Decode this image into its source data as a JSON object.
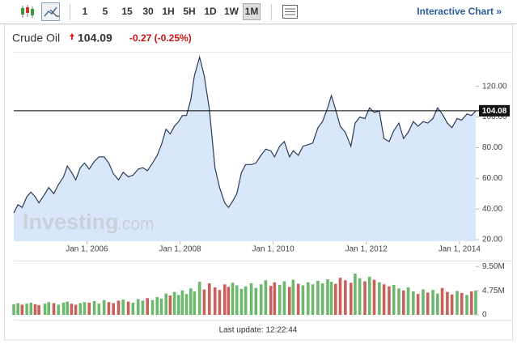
{
  "toolbar": {
    "timeframes": [
      "1",
      "5",
      "15",
      "30",
      "1H",
      "5H",
      "1D",
      "1W",
      "1M"
    ],
    "link": "Interactive Chart »"
  },
  "quote": {
    "name": "Crude Oil",
    "price": 104.09,
    "change": "-0.27 (-0.25%)"
  },
  "watermark": {
    "brand": "Investing",
    "suffix": ".com"
  },
  "footer": "Last update: 12:22:44",
  "chart_data": [
    {
      "type": "area",
      "color": "#2b3a57",
      "fill": "#d8e8fa",
      "x": [
        2004.43,
        2004.52,
        2004.61,
        2004.71,
        2004.8,
        2004.89,
        2004.97,
        2005.1,
        2005.18,
        2005.29,
        2005.39,
        2005.5,
        2005.58,
        2005.67,
        2005.76,
        2005.86,
        2005.95,
        2006.05,
        2006.16,
        2006.26,
        2006.37,
        2006.47,
        2006.57,
        2006.68,
        2006.78,
        2006.89,
        2006.99,
        2007.1,
        2007.2,
        2007.3,
        2007.41,
        2007.51,
        2007.6,
        2007.7,
        2007.79,
        2007.88,
        2007.97,
        2008.05,
        2008.14,
        2008.23,
        2008.31,
        2008.42,
        2008.52,
        2008.63,
        2008.75,
        2008.85,
        2008.96,
        2009.04,
        2009.13,
        2009.22,
        2009.32,
        2009.41,
        2009.53,
        2009.63,
        2009.74,
        2009.84,
        2009.95,
        2010.03,
        2010.14,
        2010.24,
        2010.35,
        2010.43,
        2010.54,
        2010.64,
        2010.75,
        2010.85,
        2010.96,
        2011.06,
        2011.17,
        2011.25,
        2011.34,
        2011.44,
        2011.55,
        2011.67,
        2011.76,
        2011.86,
        2011.97,
        2012.07,
        2012.17,
        2012.28,
        2012.38,
        2012.49,
        2012.59,
        2012.7,
        2012.8,
        2012.9,
        2013.01,
        2013.11,
        2013.22,
        2013.32,
        2013.43,
        2013.53,
        2013.63,
        2013.74,
        2013.84,
        2013.95,
        2014.05,
        2014.16,
        2014.26,
        2014.35
      ],
      "values": [
        37.4,
        42.8,
        41,
        48,
        51,
        48,
        44,
        50,
        54,
        50,
        56,
        61,
        68,
        64,
        59,
        67,
        70,
        66,
        71,
        74,
        74,
        70,
        63,
        59,
        64,
        61,
        62,
        66,
        67,
        65,
        70,
        75,
        82,
        92,
        89,
        94,
        97,
        101,
        101,
        111,
        127,
        139,
        127,
        105,
        67,
        54,
        44,
        41,
        45,
        50,
        64,
        69,
        69,
        70,
        75,
        79,
        78,
        74,
        81,
        84,
        74,
        78,
        75,
        81,
        82,
        83,
        93,
        97,
        106,
        114,
        105,
        94,
        90,
        81,
        96,
        100,
        99,
        106,
        103,
        104,
        86,
        84,
        91,
        96,
        86,
        90,
        97,
        94,
        97,
        96,
        99,
        106,
        102,
        96,
        93,
        99,
        98,
        102,
        101,
        104
      ],
      "xlim": [
        2004.43,
        2014.35
      ],
      "xticks": [
        {
          "value": 2006,
          "label": "Jan 1, 2006"
        },
        {
          "value": 2008,
          "label": "Jan 1, 2008"
        },
        {
          "value": 2010,
          "label": "Jan 1, 2010"
        },
        {
          "value": 2012,
          "label": "Jan 1, 2012"
        },
        {
          "value": 2014,
          "label": "Jan 1, 2014"
        }
      ],
      "ylim": [
        19,
        142
      ],
      "yticks": [
        {
          "value": 20,
          "label": "20.00"
        },
        {
          "value": 40,
          "label": "40.00"
        },
        {
          "value": 60,
          "label": "60.00"
        },
        {
          "value": 80,
          "label": "80.00"
        },
        {
          "value": 100,
          "label": "100.00"
        },
        {
          "value": 120,
          "label": "120.00"
        }
      ],
      "reference_line": 104.08
    },
    {
      "type": "bar",
      "up_color": "#6cb86c",
      "down_color": "#c8615c",
      "values": [
        2100000,
        2300000,
        2000000,
        2200000,
        2400000,
        2100000,
        1900000,
        2200000,
        2500000,
        2300000,
        2000000,
        2400000,
        2600000,
        2200000,
        2000000,
        2300000,
        2500000,
        2400000,
        2700000,
        2200000,
        2900000,
        2500000,
        2300000,
        2800000,
        3000000,
        2600000,
        2400000,
        3100000,
        2800000,
        3300000,
        2900000,
        3500000,
        3200000,
        4200000,
        3800000,
        4500000,
        3900000,
        4800000,
        4100000,
        5200000,
        4600000,
        6500000,
        5000000,
        6200000,
        5400000,
        4900000,
        6000000,
        5500000,
        6300000,
        5800000,
        5100000,
        5600000,
        6200000,
        5300000,
        6000000,
        6800000,
        5700000,
        6400000,
        5900000,
        6600000,
        5500000,
        6900000,
        6100000,
        5800000,
        6400000,
        6000000,
        6700000,
        6200000,
        7000000,
        6500000,
        6100000,
        7300000,
        6800000,
        6300000,
        8100000,
        7200000,
        6600000,
        7500000,
        6900000,
        6400000,
        6000000,
        5600000,
        5900000,
        5200000,
        4800000,
        5400000,
        4600000,
        4100000,
        5000000,
        4400000,
        4900000,
        4200000,
        5300000,
        4500000,
        4000000,
        4700000,
        4300000,
        3900000,
        4600000,
        4800000
      ],
      "ylim": [
        0,
        10500000
      ],
      "yticks": [
        0,
        {
          "value": 4750000,
          "label": "4.75M"
        },
        {
          "value": 9500000,
          "label": "9.50M"
        }
      ]
    }
  ]
}
